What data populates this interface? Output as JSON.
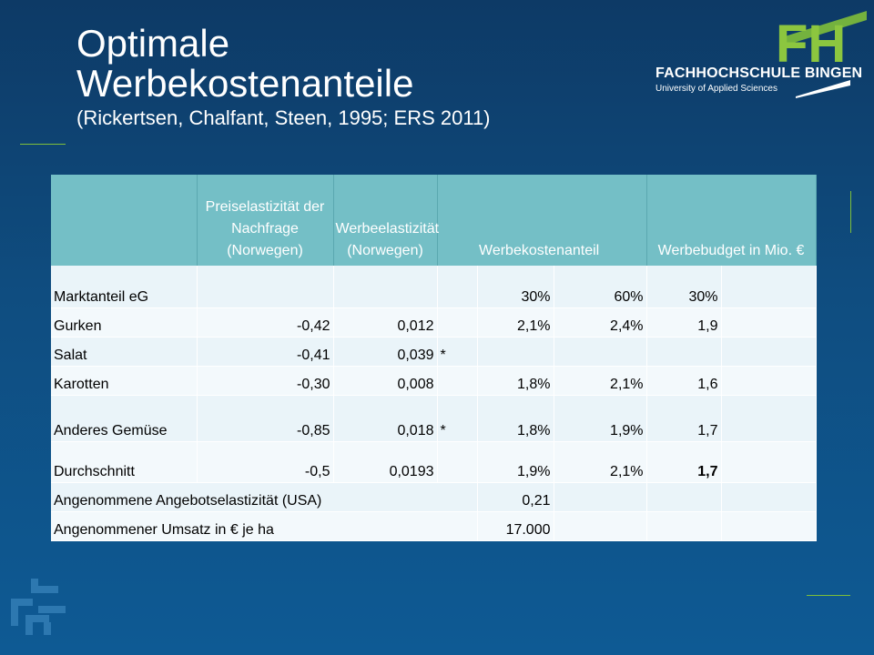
{
  "slide": {
    "title_line1": "Optimale",
    "title_line2": "Werbekostenanteile",
    "subtitle": "(Rickertsen, Chalfant, Steen, 1995; ERS 2011)"
  },
  "logo": {
    "letters": "FH",
    "name": "FACHHOCHSCHULE BINGEN",
    "tagline": "University of Applied Sciences"
  },
  "table": {
    "headers": [
      "",
      "Preiselastizität der Nachfrage (Norwegen)",
      "Werbeelastizität (Norwegen)",
      "",
      "Werbekostenanteil",
      "",
      "Werbebudget in Mio. €",
      ""
    ],
    "rows": [
      [
        "Marktanteil eG",
        "",
        "",
        "",
        "30%",
        "60%",
        "30%",
        ""
      ],
      [
        "Gurken",
        "-0,42",
        "0,012",
        "",
        "2,1%",
        "2,4%",
        "1,9",
        ""
      ],
      [
        "Salat",
        "-0,41",
        "0,039",
        "*",
        "",
        "",
        "",
        ""
      ],
      [
        "Karotten",
        "-0,30",
        "0,008",
        "",
        "1,8%",
        "2,1%",
        "1,6",
        ""
      ],
      [
        "Anderes Gemüse",
        "-0,85",
        "0,018",
        "*",
        "1,8%",
        "1,9%",
        "1,7",
        ""
      ],
      [
        "Durchschnitt",
        "-0,5",
        "0,0193",
        "",
        "1,9%",
        "2,1%",
        "1,7",
        ""
      ]
    ],
    "assumed_supply_label": "Angenommene Angebotselastizität (USA)",
    "assumed_supply_value": "0,21",
    "assumed_revenue_label": "Angenommener Umsatz in € je ha",
    "assumed_revenue_value": "17.000"
  },
  "colors": {
    "header_bg": "#74bfc6",
    "accent_green": "#7fbf3a",
    "background": "#0f4d80"
  }
}
